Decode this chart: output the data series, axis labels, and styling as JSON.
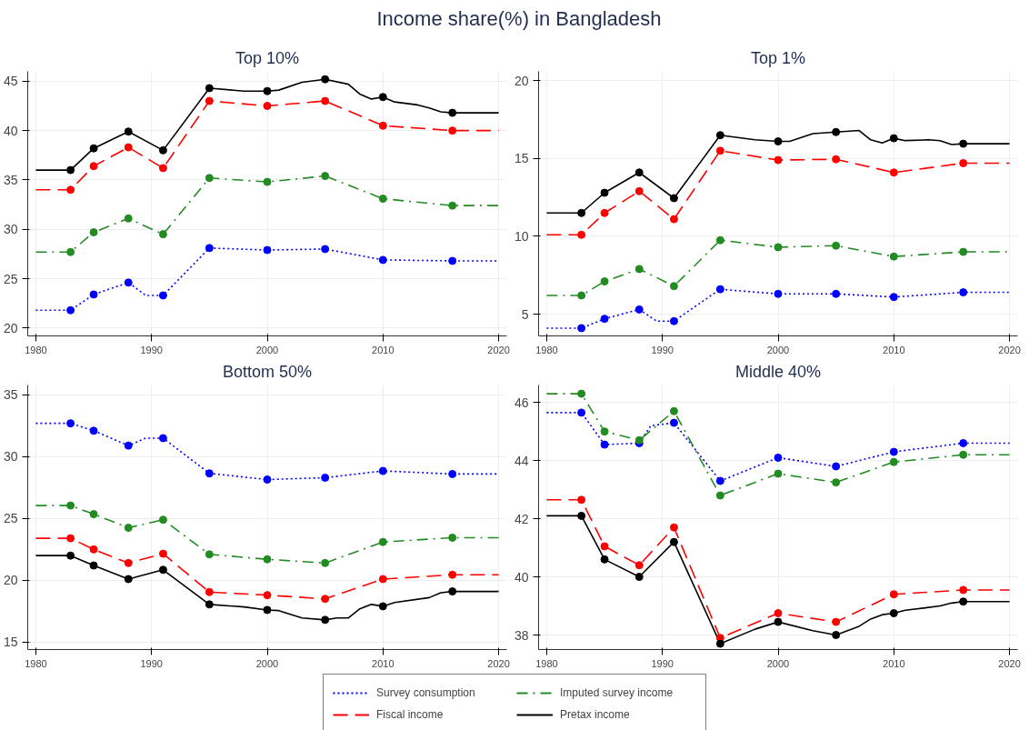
{
  "chart_data": [
    {
      "type": "line",
      "title": "Top 10%",
      "annotations": [
        "Income share(%) in Bangladesh"
      ],
      "xlim": [
        1979.3,
        2020.7
      ],
      "xticks": [
        1980,
        1990,
        2000,
        2010,
        2020
      ],
      "ylim": [
        19.2,
        46
      ],
      "yticks": [
        20,
        25,
        30,
        35,
        40,
        45
      ],
      "grid": true,
      "legend": false,
      "series": [
        {
          "color": "#0000ff",
          "line_style": "dotted",
          "marker": "none",
          "x": [
            1980,
            1983,
            1985,
            1988,
            1989.5,
            1991,
            1995,
            2000,
            2005,
            2010,
            2016,
            2020
          ],
          "values": [
            21.8,
            21.8,
            23.4,
            24.6,
            23.3,
            23.3,
            28.1,
            27.9,
            28.0,
            26.9,
            26.8,
            26.8
          ]
        },
        {
          "color": "#228b22",
          "line_style": "dashdot",
          "marker": "none",
          "x": [
            1980,
            1983,
            1985,
            1988,
            1991,
            1995,
            2000,
            2005,
            2010,
            2016,
            2020
          ],
          "values": [
            27.7,
            27.7,
            29.7,
            31.1,
            29.5,
            35.2,
            34.8,
            35.4,
            33.1,
            32.4,
            32.4
          ]
        },
        {
          "color": "#ff0000",
          "line_style": "dashed",
          "marker": "none",
          "x": [
            1980,
            1983,
            1985,
            1988,
            1991,
            1995,
            2000,
            2005,
            2010,
            2016,
            2020
          ],
          "values": [
            34.0,
            34.0,
            36.4,
            38.3,
            36.2,
            43.0,
            42.5,
            43.0,
            40.5,
            40.0,
            40.0
          ]
        },
        {
          "color": "#000000",
          "line_style": "solid",
          "marker": "none",
          "x": [
            1980,
            1983,
            1985,
            1988,
            1991,
            1995,
            1998,
            2000,
            2001,
            2003,
            2005,
            2007,
            2008,
            2009,
            2010,
            2011,
            2013,
            2014,
            2015,
            2016,
            2020
          ],
          "values": [
            36.0,
            36.0,
            38.2,
            39.9,
            38.0,
            44.3,
            44.0,
            44.0,
            44.1,
            44.9,
            45.2,
            44.7,
            43.7,
            43.2,
            43.4,
            42.9,
            42.6,
            42.3,
            41.9,
            41.8,
            41.8
          ]
        },
        {
          "type": "scatter",
          "color": "#0000ff",
          "marker": "circle",
          "x": [
            1983,
            1985,
            1988,
            1991,
            1995,
            2000,
            2005,
            2010,
            2016
          ],
          "values": [
            21.8,
            23.4,
            24.6,
            23.3,
            28.1,
            27.9,
            28.0,
            26.9,
            26.8
          ]
        },
        {
          "type": "scatter",
          "color": "#228b22",
          "marker": "circle",
          "x": [
            1983,
            1985,
            1988,
            1991,
            1995,
            2000,
            2005,
            2010,
            2016
          ],
          "values": [
            27.7,
            29.7,
            31.1,
            29.5,
            35.2,
            34.8,
            35.4,
            33.1,
            32.4
          ]
        },
        {
          "type": "scatter",
          "color": "#ff0000",
          "marker": "circle",
          "x": [
            1983,
            1985,
            1988,
            1991,
            1995,
            2000,
            2005,
            2010,
            2016
          ],
          "values": [
            34.0,
            36.4,
            38.3,
            36.2,
            43.0,
            42.5,
            43.0,
            40.5,
            40.0
          ]
        },
        {
          "type": "scatter",
          "color": "#000000",
          "marker": "circle",
          "x": [
            1983,
            1985,
            1988,
            1991,
            1995,
            2000,
            2005,
            2010,
            2016
          ],
          "values": [
            36.0,
            38.2,
            39.9,
            38.0,
            44.3,
            44.0,
            45.2,
            43.4,
            41.8
          ]
        }
      ]
    },
    {
      "type": "line",
      "title": "Top 1%",
      "xlim": [
        1979.3,
        2020.7
      ],
      "xticks": [
        1980,
        1990,
        2000,
        2010,
        2020
      ],
      "ylim": [
        3.6,
        20.6
      ],
      "yticks": [
        5,
        10,
        15,
        20
      ],
      "grid": true,
      "legend": false,
      "series": [
        {
          "color": "#0000ff",
          "line_style": "dotted",
          "marker": "none",
          "x": [
            1980,
            1983,
            1985,
            1988,
            1989.5,
            1991,
            1995,
            2000,
            2005,
            2010,
            2016,
            2020
          ],
          "values": [
            4.1,
            4.1,
            4.7,
            5.3,
            4.55,
            4.55,
            6.6,
            6.3,
            6.3,
            6.1,
            6.4,
            6.4
          ]
        },
        {
          "color": "#228b22",
          "line_style": "dashdot",
          "marker": "none",
          "x": [
            1980,
            1983,
            1985,
            1988,
            1991,
            1995,
            2000,
            2005,
            2010,
            2016,
            2020
          ],
          "values": [
            6.2,
            6.2,
            7.1,
            7.9,
            6.8,
            9.75,
            9.3,
            9.4,
            8.7,
            9.0,
            9.0
          ]
        },
        {
          "color": "#ff0000",
          "line_style": "dashed",
          "marker": "none",
          "x": [
            1980,
            1983,
            1985,
            1988,
            1991,
            1995,
            2000,
            2005,
            2010,
            2016,
            2020
          ],
          "values": [
            10.1,
            10.1,
            11.5,
            12.9,
            11.1,
            15.5,
            14.9,
            14.95,
            14.1,
            14.7,
            14.7
          ]
        },
        {
          "color": "#000000",
          "line_style": "solid",
          "marker": "none",
          "x": [
            1980,
            1983,
            1985,
            1988,
            1991,
            1995,
            1998,
            2000,
            2001,
            2003,
            2005,
            2007,
            2008,
            2009,
            2010,
            2011,
            2013,
            2014,
            2015,
            2016,
            2020
          ],
          "values": [
            11.5,
            11.5,
            12.8,
            14.1,
            12.45,
            16.5,
            16.2,
            16.1,
            16.1,
            16.6,
            16.7,
            16.8,
            16.2,
            16.0,
            16.3,
            16.15,
            16.2,
            16.15,
            15.9,
            15.95,
            15.95
          ]
        },
        {
          "type": "scatter",
          "color": "#0000ff",
          "marker": "circle",
          "x": [
            1983,
            1985,
            1988,
            1991,
            1995,
            2000,
            2005,
            2010,
            2016
          ],
          "values": [
            4.1,
            4.7,
            5.3,
            4.55,
            6.6,
            6.3,
            6.3,
            6.1,
            6.4
          ]
        },
        {
          "type": "scatter",
          "color": "#228b22",
          "marker": "circle",
          "x": [
            1983,
            1985,
            1988,
            1991,
            1995,
            2000,
            2005,
            2010,
            2016
          ],
          "values": [
            6.2,
            7.1,
            7.9,
            6.8,
            9.75,
            9.3,
            9.4,
            8.7,
            9.0
          ]
        },
        {
          "type": "scatter",
          "color": "#ff0000",
          "marker": "circle",
          "x": [
            1983,
            1985,
            1988,
            1991,
            1995,
            2000,
            2005,
            2010,
            2016
          ],
          "values": [
            10.1,
            11.5,
            12.9,
            11.1,
            15.5,
            14.9,
            14.95,
            14.1,
            14.7
          ]
        },
        {
          "type": "scatter",
          "color": "#000000",
          "marker": "circle",
          "x": [
            1983,
            1985,
            1988,
            1991,
            1995,
            2000,
            2005,
            2010,
            2016
          ],
          "values": [
            11.5,
            12.8,
            14.1,
            12.45,
            16.5,
            16.1,
            16.7,
            16.3,
            15.95
          ]
        }
      ]
    },
    {
      "type": "line",
      "title": "Bottom 50%",
      "xlim": [
        1979.3,
        2020.7
      ],
      "xticks": [
        1980,
        1990,
        2000,
        2010,
        2020
      ],
      "ylim": [
        14.4,
        35.8
      ],
      "yticks": [
        15,
        20,
        25,
        30,
        35
      ],
      "grid": true,
      "legend": false,
      "series": [
        {
          "color": "#0000ff",
          "line_style": "dotted",
          "marker": "none",
          "x": [
            1980,
            1983,
            1985,
            1988,
            1989.5,
            1991,
            1995,
            2000,
            2005,
            2010,
            2016,
            2020
          ],
          "values": [
            32.7,
            32.7,
            32.1,
            30.9,
            31.5,
            31.5,
            28.65,
            28.15,
            28.3,
            28.85,
            28.6,
            28.6
          ]
        },
        {
          "color": "#228b22",
          "line_style": "dashdot",
          "marker": "none",
          "x": [
            1980,
            1983,
            1985,
            1988,
            1991,
            1995,
            2000,
            2005,
            2010,
            2016,
            2020
          ],
          "values": [
            26.05,
            26.05,
            25.35,
            24.25,
            24.9,
            22.1,
            21.7,
            21.4,
            23.1,
            23.45,
            23.45
          ]
        },
        {
          "color": "#ff0000",
          "line_style": "dashed",
          "marker": "none",
          "x": [
            1980,
            1983,
            1985,
            1988,
            1991,
            1995,
            2000,
            2005,
            2010,
            2016,
            2020
          ],
          "values": [
            23.4,
            23.4,
            22.5,
            21.4,
            22.15,
            19.05,
            18.8,
            18.5,
            20.1,
            20.45,
            20.45
          ]
        },
        {
          "color": "#000000",
          "line_style": "solid",
          "marker": "none",
          "x": [
            1980,
            1983,
            1985,
            1988,
            1991,
            1995,
            1998,
            2000,
            2001,
            2003,
            2005,
            2006,
            2007,
            2008,
            2009,
            2010,
            2011,
            2014,
            2015,
            2016,
            2020
          ],
          "values": [
            22.0,
            22.0,
            21.2,
            20.1,
            20.85,
            18.05,
            17.85,
            17.6,
            17.55,
            16.95,
            16.8,
            16.95,
            16.95,
            17.7,
            18.05,
            17.9,
            18.2,
            18.6,
            19.0,
            19.1,
            19.1
          ]
        },
        {
          "type": "scatter",
          "color": "#0000ff",
          "marker": "circle",
          "x": [
            1983,
            1985,
            1988,
            1991,
            1995,
            2000,
            2005,
            2010,
            2016
          ],
          "values": [
            32.7,
            32.1,
            30.9,
            31.5,
            28.65,
            28.15,
            28.3,
            28.85,
            28.6
          ]
        },
        {
          "type": "scatter",
          "color": "#228b22",
          "marker": "circle",
          "x": [
            1983,
            1985,
            1988,
            1991,
            1995,
            2000,
            2005,
            2010,
            2016
          ],
          "values": [
            26.05,
            25.35,
            24.25,
            24.9,
            22.1,
            21.7,
            21.4,
            23.1,
            23.45
          ]
        },
        {
          "type": "scatter",
          "color": "#ff0000",
          "marker": "circle",
          "x": [
            1983,
            1985,
            1988,
            1991,
            1995,
            2000,
            2005,
            2010,
            2016
          ],
          "values": [
            23.4,
            22.5,
            21.4,
            22.15,
            19.05,
            18.8,
            18.5,
            20.1,
            20.45
          ]
        },
        {
          "type": "scatter",
          "color": "#000000",
          "marker": "circle",
          "x": [
            1983,
            1985,
            1988,
            1991,
            1995,
            2000,
            2005,
            2010,
            2016
          ],
          "values": [
            22.0,
            21.2,
            20.1,
            20.85,
            18.05,
            17.6,
            16.8,
            17.9,
            19.1
          ]
        }
      ]
    },
    {
      "type": "line",
      "title": "Middle 40%",
      "xlim": [
        1979.3,
        2020.7
      ],
      "xticks": [
        1980,
        1990,
        2000,
        2010,
        2020
      ],
      "ylim": [
        37.5,
        46.6
      ],
      "yticks": [
        38,
        40,
        42,
        44,
        46
      ],
      "grid": true,
      "legend": "bottom",
      "series": [
        {
          "name": "Survey consumption",
          "color": "#0000ff",
          "line_style": "dotted",
          "marker": "none",
          "x": [
            1980,
            1983,
            1985,
            1988,
            1989,
            1991,
            1995,
            2000,
            2005,
            2010,
            2016,
            2020
          ],
          "values": [
            45.65,
            45.65,
            44.55,
            44.6,
            45.2,
            45.3,
            43.3,
            44.1,
            43.8,
            44.3,
            44.6,
            44.6
          ]
        },
        {
          "name": "Imputed survey income",
          "color": "#228b22",
          "line_style": "dashdot",
          "marker": "none",
          "x": [
            1980,
            1983,
            1985,
            1988,
            1991,
            1995,
            2000,
            2005,
            2010,
            2016,
            2020
          ],
          "values": [
            46.3,
            46.3,
            45.0,
            44.7,
            45.7,
            42.8,
            43.55,
            43.25,
            43.95,
            44.2,
            44.2
          ]
        },
        {
          "name": "Fiscal income",
          "color": "#ff0000",
          "line_style": "dashed",
          "marker": "none",
          "x": [
            1980,
            1983,
            1985,
            1988,
            1991,
            1995,
            2000,
            2005,
            2010,
            2016,
            2020
          ],
          "values": [
            42.65,
            42.65,
            41.05,
            40.4,
            41.7,
            37.9,
            38.75,
            38.45,
            39.4,
            39.55,
            39.55
          ]
        },
        {
          "name": "Pretax income",
          "color": "#000000",
          "line_style": "solid",
          "marker": "none",
          "x": [
            1980,
            1983,
            1985,
            1988,
            1991,
            1995,
            1998,
            2000,
            2003,
            2005,
            2007,
            2008,
            2009,
            2010,
            2011,
            2014,
            2015,
            2016,
            2020
          ],
          "values": [
            42.1,
            42.1,
            40.6,
            40.0,
            41.2,
            37.7,
            38.2,
            38.45,
            38.15,
            38.0,
            38.3,
            38.55,
            38.7,
            38.75,
            38.85,
            39.0,
            39.1,
            39.15,
            39.15
          ]
        },
        {
          "type": "scatter",
          "color": "#0000ff",
          "marker": "circle",
          "x": [
            1983,
            1985,
            1988,
            1991,
            1995,
            2000,
            2005,
            2010,
            2016
          ],
          "values": [
            45.65,
            44.55,
            44.6,
            45.3,
            43.3,
            44.1,
            43.8,
            44.3,
            44.6
          ]
        },
        {
          "type": "scatter",
          "color": "#228b22",
          "marker": "circle",
          "x": [
            1983,
            1985,
            1988,
            1991,
            1995,
            2000,
            2005,
            2010,
            2016
          ],
          "values": [
            46.3,
            45.0,
            44.7,
            45.7,
            42.8,
            43.55,
            43.25,
            43.95,
            44.2
          ]
        },
        {
          "type": "scatter",
          "color": "#ff0000",
          "marker": "circle",
          "x": [
            1983,
            1985,
            1988,
            1991,
            1995,
            2000,
            2005,
            2010,
            2016
          ],
          "values": [
            42.65,
            41.05,
            40.4,
            41.7,
            37.9,
            38.75,
            38.45,
            39.4,
            39.55
          ]
        },
        {
          "type": "scatter",
          "color": "#000000",
          "marker": "circle",
          "x": [
            1983,
            1985,
            1988,
            1991,
            1995,
            2000,
            2005,
            2010,
            2016
          ],
          "values": [
            42.1,
            40.6,
            40.0,
            41.2,
            37.7,
            38.45,
            38.0,
            38.75,
            39.15
          ]
        }
      ]
    }
  ]
}
